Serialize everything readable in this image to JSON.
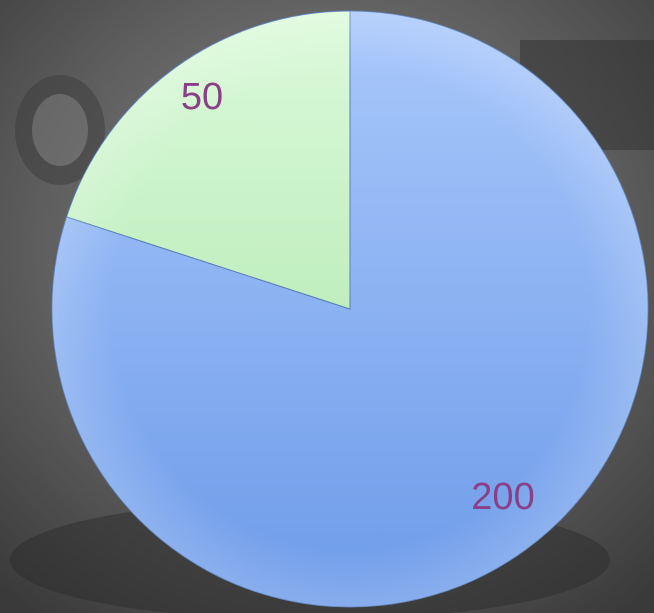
{
  "chart_data": {
    "type": "pie",
    "categories": [
      "",
      ""
    ],
    "values": [
      200,
      50
    ],
    "data_labels": [
      "200",
      "50"
    ],
    "colors": [
      "#8fb3f3",
      "#c9f2c8"
    ],
    "label_color": "#8a3f86",
    "title": "",
    "legend": "none",
    "start_angle_deg": 0,
    "direction": "clockwise"
  },
  "background": {
    "description_color": "#5f5f5f"
  }
}
